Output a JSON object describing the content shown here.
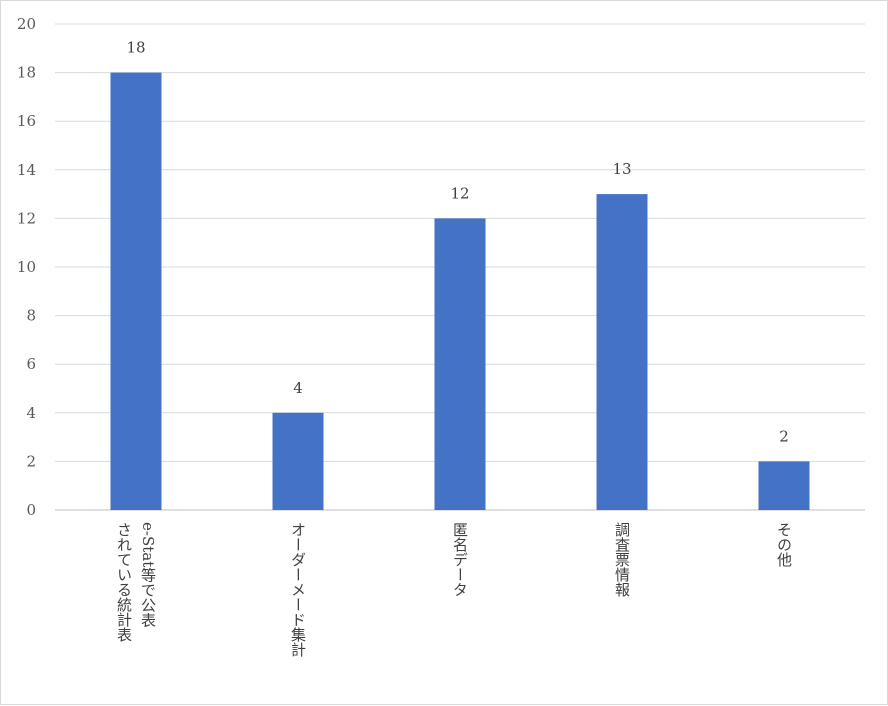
{
  "chart_data": {
    "type": "bar",
    "title": "",
    "xlabel": "",
    "ylabel": "",
    "categories": [
      [
        "e-Stat等で公表",
        "されている統計表"
      ],
      [
        "オーダーメード集計"
      ],
      [
        "匿名データ"
      ],
      [
        "調査票情報"
      ],
      [
        "その他"
      ]
    ],
    "values": [
      18,
      4,
      12,
      13,
      2
    ],
    "ylim": [
      0,
      20
    ],
    "yticks": [
      0,
      2,
      4,
      6,
      8,
      10,
      12,
      14,
      16,
      18,
      20
    ],
    "grid": true,
    "legend": "none",
    "data_labels": true,
    "colors": {
      "bar": "#4472C4",
      "grid": "#d9d9d9",
      "axis": "#bfbfbf"
    }
  }
}
